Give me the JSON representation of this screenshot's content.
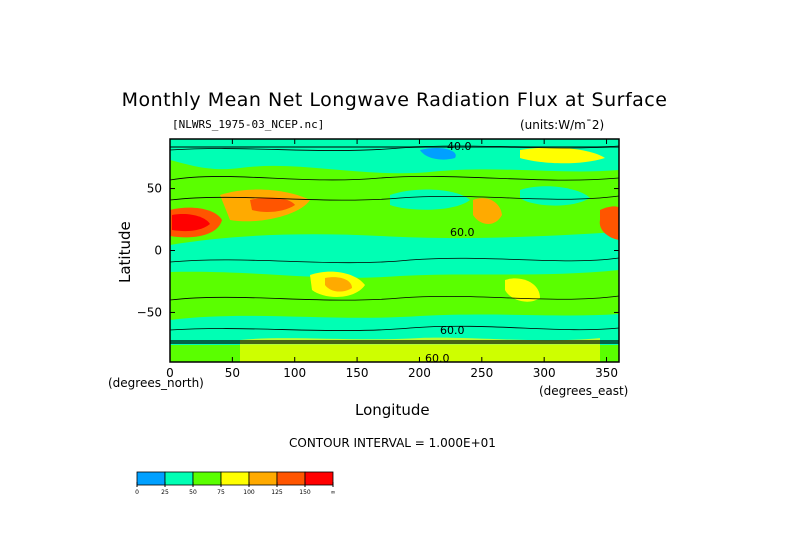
{
  "chart_data": {
    "type": "heatmap",
    "subtype": "filled-contour-map",
    "title": "Monthly Mean Net Longwave Radiation Flux at Surface",
    "dataset_label": "[NLWRS_1975-03_NCEP.nc]",
    "units_label": "(units:W/m¯2)",
    "xlabel": "Longitude",
    "ylabel": "Latitude",
    "x_unit_label": "(degrees_east)",
    "y_unit_label": "(degrees_north)",
    "xlim": [
      0,
      360
    ],
    "ylim": [
      -90,
      90
    ],
    "x_ticks": [
      "0",
      "50",
      "100",
      "150",
      "200",
      "250",
      "300",
      "350"
    ],
    "y_ticks": [
      "50",
      "0",
      "−50"
    ],
    "contour_interval_text": "CONTOUR INTERVAL = 1.000E+01",
    "contour_labels": [
      "40.0",
      "60.0",
      "60.0",
      "60.0"
    ],
    "colorbar": {
      "levels": [
        "0",
        "25",
        "50",
        "75",
        "100",
        "125",
        "150",
        "∞"
      ],
      "colors": [
        "#00a0ff",
        "#00ffb4",
        "#5aff00",
        "#ffff00",
        "#ffaa00",
        "#ff5500",
        "#ff0000"
      ]
    }
  }
}
